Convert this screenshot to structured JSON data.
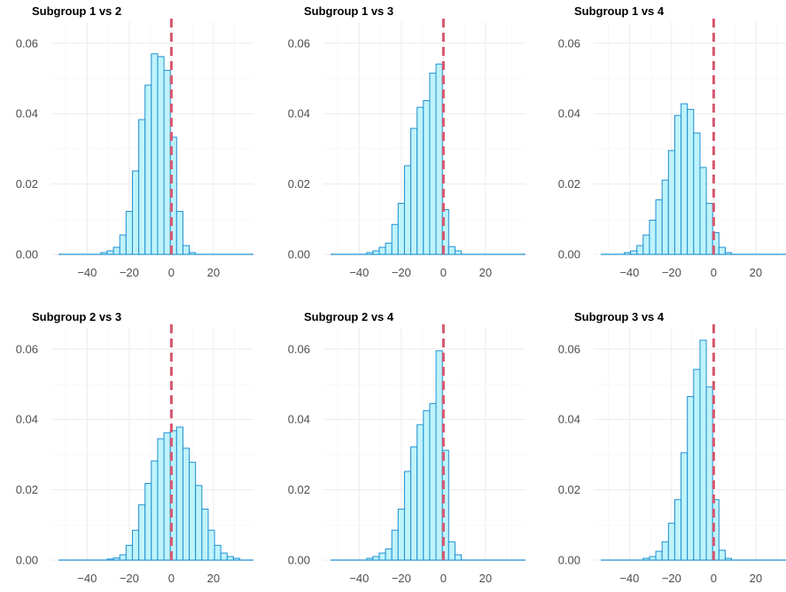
{
  "chart_data": [
    {
      "type": "histogram",
      "title": "Subgroup 1 vs 2",
      "xlim": [
        -57,
        39
      ],
      "ylim": [
        0,
        0.066
      ],
      "xticks": [
        -40,
        -20,
        0,
        20
      ],
      "xtick_labels": [
        "−40",
        "−20",
        "0",
        "20"
      ],
      "yticks": [
        0,
        0.02,
        0.04,
        0.06
      ],
      "ytick_labels": [
        "0.00",
        "0.02",
        "0.04",
        "0.06"
      ],
      "bin_width": 3,
      "reference_line_x": 0,
      "bars": [
        {
          "x": -32,
          "y": 0.0005
        },
        {
          "x": -29,
          "y": 0.001
        },
        {
          "x": -26,
          "y": 0.002
        },
        {
          "x": -23,
          "y": 0.0055
        },
        {
          "x": -20,
          "y": 0.0122
        },
        {
          "x": -17,
          "y": 0.0237
        },
        {
          "x": -14,
          "y": 0.0383
        },
        {
          "x": -11,
          "y": 0.0481
        },
        {
          "x": -8,
          "y": 0.057
        },
        {
          "x": -5,
          "y": 0.0562
        },
        {
          "x": -2,
          "y": 0.0523
        },
        {
          "x": 1,
          "y": 0.0333
        },
        {
          "x": 4,
          "y": 0.0122
        },
        {
          "x": 7,
          "y": 0.0025
        },
        {
          "x": 10,
          "y": 0.0005
        }
      ]
    },
    {
      "type": "histogram",
      "title": "Subgroup 1 vs 3",
      "xlim": [
        -57,
        39
      ],
      "ylim": [
        0,
        0.066
      ],
      "xticks": [
        -40,
        -20,
        0,
        20
      ],
      "xtick_labels": [
        "−40",
        "−20",
        "0",
        "20"
      ],
      "yticks": [
        0,
        0.02,
        0.04,
        0.06
      ],
      "ytick_labels": [
        "0.00",
        "0.02",
        "0.04",
        "0.06"
      ],
      "bin_width": 3,
      "reference_line_x": 0,
      "bars": [
        {
          "x": -35,
          "y": 0.0005
        },
        {
          "x": -32,
          "y": 0.001
        },
        {
          "x": -29,
          "y": 0.002
        },
        {
          "x": -26,
          "y": 0.0032
        },
        {
          "x": -23,
          "y": 0.0085
        },
        {
          "x": -20,
          "y": 0.0145
        },
        {
          "x": -17,
          "y": 0.0252
        },
        {
          "x": -14,
          "y": 0.0358
        },
        {
          "x": -11,
          "y": 0.0418
        },
        {
          "x": -8,
          "y": 0.0437
        },
        {
          "x": -5,
          "y": 0.0515
        },
        {
          "x": -2,
          "y": 0.0541
        },
        {
          "x": 1,
          "y": 0.0127
        },
        {
          "x": 4,
          "y": 0.0022
        },
        {
          "x": 7,
          "y": 0.001
        }
      ]
    },
    {
      "type": "histogram",
      "title": "Subgroup 1 vs 4",
      "xlim": [
        -57,
        39
      ],
      "ylim": [
        0,
        0.066
      ],
      "xticks": [
        -40,
        -20,
        0,
        20
      ],
      "xtick_labels": [
        "−40",
        "−20",
        "0",
        "20"
      ],
      "yticks": [
        0,
        0.02,
        0.04,
        0.06
      ],
      "ytick_labels": [
        "0.00",
        "0.02",
        "0.04",
        "0.06"
      ],
      "bin_width": 3,
      "reference_line_x": 0,
      "bars": [
        {
          "x": -41,
          "y": 0.0005
        },
        {
          "x": -38,
          "y": 0.001
        },
        {
          "x": -35,
          "y": 0.0025
        },
        {
          "x": -32,
          "y": 0.0055
        },
        {
          "x": -29,
          "y": 0.0097
        },
        {
          "x": -26,
          "y": 0.0155
        },
        {
          "x": -23,
          "y": 0.0211
        },
        {
          "x": -20,
          "y": 0.0295
        },
        {
          "x": -17,
          "y": 0.0395
        },
        {
          "x": -14,
          "y": 0.0428
        },
        {
          "x": -11,
          "y": 0.0412
        },
        {
          "x": -8,
          "y": 0.0345
        },
        {
          "x": -5,
          "y": 0.0247
        },
        {
          "x": -2,
          "y": 0.0145
        },
        {
          "x": 1,
          "y": 0.0062
        },
        {
          "x": 4,
          "y": 0.002
        },
        {
          "x": 7,
          "y": 0.0005
        }
      ]
    },
    {
      "type": "histogram",
      "title": "Subgroup 2 vs 3",
      "xlim": [
        -57,
        39
      ],
      "ylim": [
        0,
        0.066
      ],
      "xticks": [
        -40,
        -20,
        0,
        20
      ],
      "xtick_labels": [
        "−40",
        "−20",
        "0",
        "20"
      ],
      "yticks": [
        0,
        0.02,
        0.04,
        0.06
      ],
      "ytick_labels": [
        "0.00",
        "0.02",
        "0.04",
        "0.06"
      ],
      "bin_width": 3,
      "reference_line_x": 0,
      "bars": [
        {
          "x": -29,
          "y": 0.0003
        },
        {
          "x": -26,
          "y": 0.0006
        },
        {
          "x": -23,
          "y": 0.0015
        },
        {
          "x": -20,
          "y": 0.0042
        },
        {
          "x": -17,
          "y": 0.0085
        },
        {
          "x": -14,
          "y": 0.0157
        },
        {
          "x": -11,
          "y": 0.0218
        },
        {
          "x": -8,
          "y": 0.0282
        },
        {
          "x": -5,
          "y": 0.0345
        },
        {
          "x": -2,
          "y": 0.0362
        },
        {
          "x": 1,
          "y": 0.0368
        },
        {
          "x": 4,
          "y": 0.0378
        },
        {
          "x": 7,
          "y": 0.0318
        },
        {
          "x": 10,
          "y": 0.0278
        },
        {
          "x": 13,
          "y": 0.0212
        },
        {
          "x": 16,
          "y": 0.0145
        },
        {
          "x": 19,
          "y": 0.0085
        },
        {
          "x": 22,
          "y": 0.0042
        },
        {
          "x": 25,
          "y": 0.002
        },
        {
          "x": 28,
          "y": 0.001
        },
        {
          "x": 31,
          "y": 0.0005
        }
      ]
    },
    {
      "type": "histogram",
      "title": "Subgroup 2 vs 4",
      "xlim": [
        -57,
        39
      ],
      "ylim": [
        0,
        0.066
      ],
      "xticks": [
        -40,
        -20,
        0,
        20
      ],
      "xtick_labels": [
        "−40",
        "−20",
        "0",
        "20"
      ],
      "yticks": [
        0,
        0.02,
        0.04,
        0.06
      ],
      "ytick_labels": [
        "0.00",
        "0.02",
        "0.04",
        "0.06"
      ],
      "bin_width": 3,
      "reference_line_x": 0,
      "bars": [
        {
          "x": -35,
          "y": 0.0005
        },
        {
          "x": -32,
          "y": 0.001
        },
        {
          "x": -29,
          "y": 0.002
        },
        {
          "x": -26,
          "y": 0.0032
        },
        {
          "x": -23,
          "y": 0.0085
        },
        {
          "x": -20,
          "y": 0.0145
        },
        {
          "x": -17,
          "y": 0.0252
        },
        {
          "x": -14,
          "y": 0.0322
        },
        {
          "x": -11,
          "y": 0.0385
        },
        {
          "x": -8,
          "y": 0.0425
        },
        {
          "x": -5,
          "y": 0.0445
        },
        {
          "x": -2,
          "y": 0.0595
        },
        {
          "x": 1,
          "y": 0.0312
        },
        {
          "x": 4,
          "y": 0.0052
        },
        {
          "x": 7,
          "y": 0.0015
        }
      ]
    },
    {
      "type": "histogram",
      "title": "Subgroup 3 vs 4",
      "xlim": [
        -57,
        39
      ],
      "ylim": [
        0,
        0.066
      ],
      "xticks": [
        -40,
        -20,
        0,
        20
      ],
      "xtick_labels": [
        "−40",
        "−20",
        "0",
        "20"
      ],
      "yticks": [
        0,
        0.02,
        0.04,
        0.06
      ],
      "ytick_labels": [
        "0.00",
        "0.02",
        "0.04",
        "0.06"
      ],
      "bin_width": 3,
      "reference_line_x": 0,
      "bars": [
        {
          "x": -32,
          "y": 0.0005
        },
        {
          "x": -29,
          "y": 0.001
        },
        {
          "x": -26,
          "y": 0.0025
        },
        {
          "x": -23,
          "y": 0.0052
        },
        {
          "x": -20,
          "y": 0.0105
        },
        {
          "x": -17,
          "y": 0.0172
        },
        {
          "x": -14,
          "y": 0.0305
        },
        {
          "x": -11,
          "y": 0.0465
        },
        {
          "x": -8,
          "y": 0.0542
        },
        {
          "x": -5,
          "y": 0.0625
        },
        {
          "x": -2,
          "y": 0.0492
        },
        {
          "x": 1,
          "y": 0.0172
        },
        {
          "x": 4,
          "y": 0.0028
        },
        {
          "x": 7,
          "y": 0.0005
        }
      ]
    }
  ]
}
